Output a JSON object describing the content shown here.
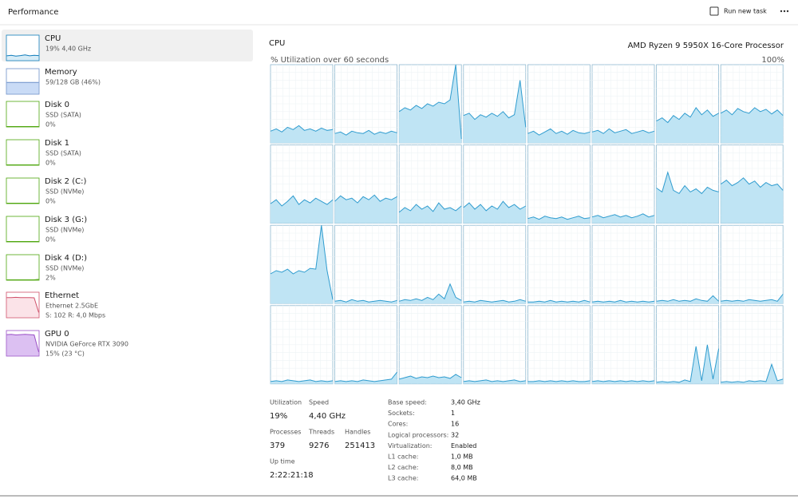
{
  "header": {
    "title": "Performance",
    "run_task": "Run new task"
  },
  "sidebar": [
    {
      "title": "CPU",
      "lines": [
        "19% 4,40 GHz"
      ],
      "color": "#117dbb",
      "fill": "#d7ecf7",
      "graph": [
        18,
        20,
        17,
        19,
        22,
        18,
        20,
        19
      ]
    },
    {
      "title": "Memory",
      "lines": [
        "59/128 GB (46%)"
      ],
      "color": "#6b8fc9",
      "fill": "#c9dbf6",
      "graph": [
        46,
        46,
        46,
        46,
        46,
        46,
        46,
        46
      ]
    },
    {
      "title": "Disk 0",
      "lines": [
        "SSD (SATA)",
        "0%"
      ],
      "color": "#4da60c",
      "fill": "#e3f3d6",
      "graph": [
        0,
        0,
        0,
        0,
        0,
        0,
        0,
        0
      ]
    },
    {
      "title": "Disk 1",
      "lines": [
        "SSD (SATA)",
        "0%"
      ],
      "color": "#4da60c",
      "fill": "#e3f3d6",
      "graph": [
        0,
        0,
        0,
        0,
        0,
        0,
        0,
        0
      ]
    },
    {
      "title": "Disk 2 (C:)",
      "lines": [
        "SSD (NVMe)",
        "0%"
      ],
      "color": "#4da60c",
      "fill": "#e3f3d6",
      "graph": [
        0,
        0,
        0,
        0,
        0,
        0,
        0,
        0
      ]
    },
    {
      "title": "Disk 3 (G:)",
      "lines": [
        "SSD (NVMe)",
        "0%"
      ],
      "color": "#4da60c",
      "fill": "#e3f3d6",
      "graph": [
        0,
        0,
        0,
        0,
        0,
        0,
        0,
        0
      ]
    },
    {
      "title": "Disk 4 (D:)",
      "lines": [
        "SSD (NVMe)",
        "2%"
      ],
      "color": "#4da60c",
      "fill": "#e3f3d6",
      "graph": [
        0,
        0,
        0,
        0,
        0,
        0,
        0,
        2
      ]
    },
    {
      "title": "Ethernet",
      "lines": [
        "Ethernet 2.5GbE",
        "S: 102 R: 4,0 Mbps"
      ],
      "color": "#d0506a",
      "fill": "#fbe3e8",
      "graph": [
        80,
        80,
        81,
        80,
        80,
        80,
        79,
        20
      ]
    },
    {
      "title": "GPU 0",
      "lines": [
        "NVIDIA GeForce RTX 3090",
        "15% (23 °C)"
      ],
      "color": "#9a4fc6",
      "fill": "#dcc0f2",
      "graph": [
        85,
        86,
        84,
        85,
        86,
        85,
        84,
        15
      ]
    }
  ],
  "main": {
    "title": "CPU",
    "processor": "AMD Ryzen 9 5950X 16-Core Processor",
    "graph_label": "% Utilization over 60 seconds",
    "graph_max": {
      "value": 100,
      "label": "100%"
    },
    "line_color": "#2f9ccf",
    "fill_color": "#bfe4f4",
    "cores": [
      [
        15,
        18,
        14,
        20,
        17,
        22,
        16,
        18,
        15,
        19,
        16,
        17
      ],
      [
        12,
        14,
        10,
        15,
        13,
        12,
        16,
        11,
        14,
        12,
        15,
        13
      ],
      [
        40,
        45,
        42,
        48,
        44,
        50,
        47,
        52,
        50,
        55,
        100,
        5
      ],
      [
        35,
        38,
        30,
        36,
        33,
        38,
        34,
        40,
        32,
        36,
        80,
        20
      ],
      [
        12,
        15,
        10,
        14,
        18,
        12,
        15,
        11,
        16,
        13,
        12,
        14
      ],
      [
        14,
        16,
        12,
        18,
        13,
        15,
        17,
        12,
        14,
        16,
        13,
        15
      ],
      [
        28,
        32,
        26,
        35,
        30,
        38,
        33,
        45,
        36,
        42,
        34,
        38
      ],
      [
        38,
        42,
        36,
        44,
        40,
        38,
        45,
        40,
        43,
        37,
        42,
        35
      ],
      [
        25,
        30,
        22,
        28,
        35,
        24,
        30,
        26,
        32,
        28,
        24,
        30
      ],
      [
        28,
        35,
        30,
        32,
        26,
        34,
        30,
        36,
        28,
        32,
        30,
        34
      ],
      [
        14,
        20,
        16,
        24,
        18,
        22,
        15,
        26,
        18,
        20,
        16,
        22
      ],
      [
        20,
        26,
        18,
        24,
        16,
        22,
        18,
        28,
        20,
        24,
        18,
        22
      ],
      [
        6,
        8,
        5,
        9,
        7,
        6,
        8,
        5,
        7,
        9,
        6,
        7
      ],
      [
        8,
        10,
        7,
        9,
        11,
        8,
        10,
        7,
        9,
        12,
        8,
        10
      ],
      [
        45,
        40,
        65,
        42,
        38,
        48,
        40,
        44,
        38,
        46,
        42,
        40
      ],
      [
        50,
        55,
        48,
        52,
        58,
        50,
        54,
        46,
        52,
        48,
        50,
        42
      ],
      [
        38,
        42,
        40,
        44,
        38,
        42,
        40,
        45,
        44,
        100,
        42,
        5
      ],
      [
        3,
        4,
        2,
        5,
        3,
        4,
        2,
        3,
        4,
        3,
        2,
        4
      ],
      [
        3,
        5,
        4,
        6,
        4,
        8,
        5,
        12,
        6,
        25,
        8,
        4
      ],
      [
        2,
        3,
        2,
        4,
        3,
        2,
        3,
        4,
        2,
        3,
        5,
        3
      ],
      [
        2,
        2,
        3,
        2,
        4,
        2,
        3,
        2,
        3,
        2,
        4,
        2
      ],
      [
        2,
        3,
        2,
        3,
        2,
        4,
        2,
        3,
        2,
        3,
        2,
        3
      ],
      [
        3,
        4,
        3,
        5,
        3,
        4,
        3,
        6,
        4,
        3,
        10,
        3
      ],
      [
        3,
        4,
        3,
        4,
        3,
        5,
        4,
        3,
        4,
        5,
        3,
        12
      ],
      [
        3,
        4,
        3,
        5,
        4,
        3,
        4,
        5,
        3,
        4,
        3,
        4
      ],
      [
        3,
        4,
        3,
        4,
        3,
        5,
        4,
        3,
        4,
        5,
        6,
        15
      ],
      [
        6,
        8,
        10,
        7,
        9,
        8,
        10,
        8,
        9,
        7,
        12,
        8
      ],
      [
        3,
        4,
        3,
        4,
        5,
        3,
        4,
        3,
        4,
        5,
        3,
        4
      ],
      [
        3,
        3,
        4,
        3,
        4,
        3,
        4,
        3,
        4,
        3,
        3,
        4
      ],
      [
        3,
        4,
        3,
        4,
        3,
        4,
        3,
        4,
        3,
        4,
        3,
        4
      ],
      [
        2,
        3,
        2,
        3,
        2,
        5,
        3,
        48,
        4,
        50,
        6,
        45
      ],
      [
        2,
        3,
        2,
        3,
        2,
        4,
        3,
        4,
        3,
        25,
        4,
        6
      ]
    ],
    "stats": [
      {
        "label": "Utilization",
        "value": "19%"
      },
      {
        "label": "Speed",
        "value": "4,40 GHz"
      },
      {
        "label": "Processes",
        "value": "379"
      },
      {
        "label": "Threads",
        "value": "9276"
      },
      {
        "label": "Handles",
        "value": "251413"
      },
      {
        "label": "Up time",
        "value": "2:22:21:18"
      }
    ],
    "info": [
      [
        "Base speed:",
        "3,40 GHz"
      ],
      [
        "Sockets:",
        "1"
      ],
      [
        "Cores:",
        "16"
      ],
      [
        "Logical processors:",
        "32"
      ],
      [
        "Virtualization:",
        "Enabled"
      ],
      [
        "L1 cache:",
        "1,0 MB"
      ],
      [
        "L2 cache:",
        "8,0 MB"
      ],
      [
        "L3 cache:",
        "64,0 MB"
      ]
    ]
  }
}
